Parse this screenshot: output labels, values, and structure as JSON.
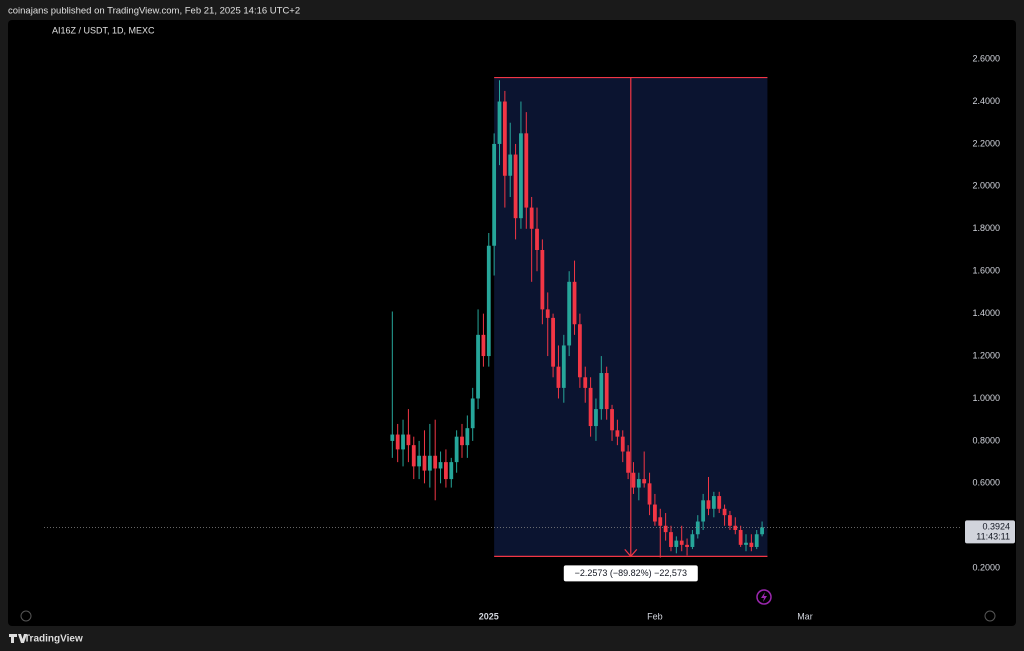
{
  "header": {
    "publisher": "coinajans published on TradingView.com, Feb 21, 2025 14:16 UTC+2"
  },
  "footer": {
    "brand": "TradingView"
  },
  "chart_data": {
    "type": "candlestick",
    "title": "AI16Z / USDT, 1D, MEXC",
    "categories": [
      null,
      null,
      null,
      null,
      null,
      null,
      null,
      null,
      null,
      null,
      null,
      null,
      null,
      null,
      null,
      null,
      null,
      null,
      null,
      null,
      null,
      null,
      null,
      null,
      null,
      null,
      null,
      null,
      null,
      null,
      null,
      null,
      null,
      null,
      null,
      null,
      null,
      null,
      null,
      null,
      null,
      null,
      null,
      null,
      null,
      null,
      null,
      null,
      null,
      null,
      null,
      null,
      null,
      null,
      null,
      null,
      null,
      null,
      null,
      null,
      null,
      null,
      null,
      null,
      null,
      null,
      null,
      null,
      null,
      null
    ],
    "open": [
      0.8,
      0.83,
      0.76,
      0.83,
      0.78,
      0.68,
      0.73,
      0.66,
      0.73,
      0.67,
      0.7,
      0.62,
      0.7,
      0.82,
      0.78,
      0.86,
      1.0,
      1.3,
      1.2,
      1.72,
      2.2,
      2.4,
      2.05,
      2.15,
      1.85,
      2.25,
      1.9,
      1.8,
      1.7,
      1.42,
      1.38,
      1.15,
      1.05,
      1.25,
      1.55,
      1.35,
      1.1,
      1.05,
      0.87,
      0.95,
      1.12,
      0.95,
      0.85,
      0.82,
      0.75,
      0.65,
      0.58,
      0.62,
      0.6,
      0.5,
      0.44,
      0.4,
      0.37,
      0.3,
      0.33,
      0.31,
      0.3,
      0.36,
      0.42,
      0.52,
      0.48,
      0.54,
      0.48,
      0.45,
      0.4,
      0.38,
      0.31,
      0.32,
      0.3,
      0.36
    ],
    "high": [
      1.41,
      0.88,
      0.9,
      0.95,
      0.82,
      0.8,
      0.85,
      0.88,
      0.9,
      0.75,
      0.76,
      0.72,
      0.85,
      0.88,
      0.92,
      1.05,
      1.42,
      1.4,
      1.78,
      2.25,
      2.5,
      2.45,
      2.3,
      2.2,
      2.4,
      2.35,
      1.95,
      1.9,
      1.75,
      1.5,
      1.4,
      1.25,
      1.3,
      1.6,
      1.65,
      1.4,
      1.15,
      1.1,
      1.0,
      1.2,
      1.15,
      0.97,
      0.9,
      0.85,
      0.78,
      0.7,
      0.65,
      0.75,
      0.65,
      0.55,
      0.48,
      0.46,
      0.4,
      0.35,
      0.4,
      0.34,
      0.38,
      0.45,
      0.55,
      0.63,
      0.56,
      0.56,
      0.5,
      0.47,
      0.44,
      0.4,
      0.36,
      0.36,
      0.38,
      0.42
    ],
    "low": [
      0.72,
      0.7,
      0.68,
      0.7,
      0.62,
      0.62,
      0.6,
      0.58,
      0.52,
      0.6,
      0.58,
      0.58,
      0.65,
      0.72,
      0.72,
      0.8,
      0.95,
      1.15,
      1.15,
      1.58,
      2.1,
      1.9,
      1.95,
      1.75,
      1.8,
      1.8,
      1.55,
      1.6,
      1.35,
      1.2,
      1.1,
      1.0,
      0.98,
      1.2,
      1.3,
      1.05,
      0.98,
      0.82,
      0.8,
      0.9,
      0.9,
      0.8,
      0.78,
      0.7,
      0.62,
      0.55,
      0.52,
      0.58,
      0.45,
      0.4,
      0.25,
      0.33,
      0.28,
      0.27,
      0.28,
      0.26,
      0.29,
      0.34,
      0.38,
      0.45,
      0.44,
      0.46,
      0.4,
      0.38,
      0.36,
      0.3,
      0.28,
      0.28,
      0.29,
      0.35
    ],
    "close": [
      0.83,
      0.76,
      0.83,
      0.78,
      0.68,
      0.73,
      0.66,
      0.73,
      0.67,
      0.7,
      0.62,
      0.7,
      0.82,
      0.78,
      0.86,
      1.0,
      1.3,
      1.2,
      1.72,
      2.2,
      2.4,
      2.05,
      2.15,
      1.85,
      2.25,
      1.9,
      1.8,
      1.7,
      1.42,
      1.38,
      1.15,
      1.05,
      1.25,
      1.55,
      1.35,
      1.1,
      1.05,
      0.87,
      0.95,
      1.12,
      0.95,
      0.85,
      0.82,
      0.75,
      0.65,
      0.58,
      0.62,
      0.6,
      0.5,
      0.42,
      0.4,
      0.37,
      0.3,
      0.33,
      0.31,
      0.3,
      0.36,
      0.42,
      0.52,
      0.48,
      0.54,
      0.48,
      0.45,
      0.4,
      0.38,
      0.31,
      0.32,
      0.3,
      0.36,
      0.3924
    ],
    "up_color": "#26a69a",
    "down_color": "#f23645",
    "xlim": [
      -65,
      105
    ],
    "xticks": [
      {
        "value": 18,
        "label": "2025"
      },
      {
        "value": 49,
        "label": "Feb"
      },
      {
        "value": 77,
        "label": "Mar"
      }
    ],
    "ylim": [
      0.05,
      2.69
    ],
    "yticks": [
      {
        "value": 0.2,
        "label": "0.2000"
      },
      {
        "value": 0.4,
        "label": "0.4000"
      },
      {
        "value": 0.6,
        "label": "0.6000"
      },
      {
        "value": 0.8,
        "label": "0.8000"
      },
      {
        "value": 1.0,
        "label": "1.0000"
      },
      {
        "value": 1.2,
        "label": "1.2000"
      },
      {
        "value": 1.4,
        "label": "1.4000"
      },
      {
        "value": 1.6,
        "label": "1.6000"
      },
      {
        "value": 1.8,
        "label": "1.8000"
      },
      {
        "value": 2.0,
        "label": "2.0000"
      },
      {
        "value": 2.2,
        "label": "2.2000"
      },
      {
        "value": 2.4,
        "label": "2.4000"
      },
      {
        "value": 2.6,
        "label": "2.6000"
      }
    ],
    "last_price": 0.3924,
    "countdown": "11:43:11",
    "measure": {
      "from": 2.513,
      "to": 0.2557,
      "start_index": 19,
      "end_index": 70,
      "label": "−2.2573 (−89.82%) −22,573",
      "color": "#f23645"
    }
  }
}
